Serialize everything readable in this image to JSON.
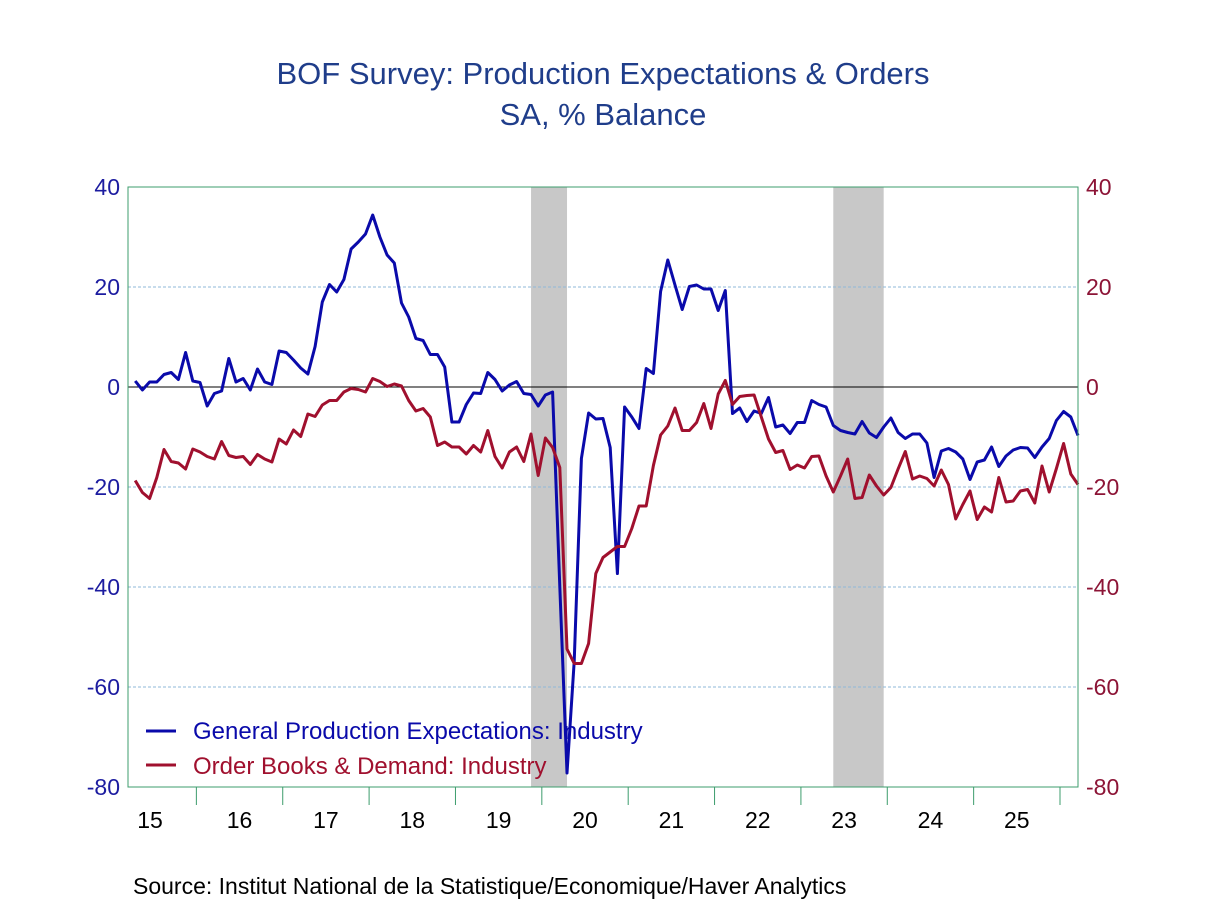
{
  "chart_data": {
    "type": "line",
    "title": "BOF Survey: Production Expectations & Orders",
    "subtitle": "SA, % Balance",
    "source": "Source:  Institut National de la Statistique/Economique/Haver Analytics",
    "x_start": "2015-04",
    "frequency": "monthly",
    "x_tick_labels": [
      "15",
      "16",
      "17",
      "18",
      "19",
      "20",
      "21",
      "22",
      "23",
      "24",
      "25"
    ],
    "xlim": [
      "2015-03",
      "2026-03"
    ],
    "y_left": {
      "ylim": [
        -80,
        40
      ],
      "ticks": [
        "40",
        "20",
        "0",
        "-20",
        "-40",
        "-60",
        "-80"
      ],
      "color": "#1c1ca0"
    },
    "y_right": {
      "ylim": [
        -80,
        40
      ],
      "ticks": [
        "40",
        "20",
        "0",
        "-20",
        "-40",
        "-60",
        "-80"
      ],
      "color": "#8c1436"
    },
    "grid": true,
    "zero_line": true,
    "legend_position": "bottom-left",
    "recession_shading": [
      [
        "2019-11",
        "2020-04"
      ],
      [
        "2023-05",
        "2023-12"
      ]
    ],
    "colors": {
      "title": "#1f3d8a",
      "frame": "#3c9c6c",
      "grid": "#8fb8d8",
      "shade": "#c8c8c8"
    },
    "series": [
      {
        "name": "General Production Expectations: Industry",
        "color": "#0a0aaa",
        "values": [
          1.2,
          -0.6,
          1,
          1,
          2.5,
          2.9,
          1.5,
          6.9,
          1.2,
          0.9,
          -3.8,
          -1.3,
          -0.8,
          5.7,
          1,
          1.7,
          -0.6,
          3.6,
          1,
          0.5,
          7.2,
          6.9,
          5.4,
          3.8,
          2.6,
          8.1,
          17,
          20.5,
          19,
          21.5,
          27.6,
          29,
          30.6,
          34.4,
          30,
          26.4,
          24.8,
          16.8,
          14,
          9.7,
          9.3,
          6.5,
          6.5,
          4,
          -7,
          -7,
          -3.5,
          -1.2,
          -1.3,
          2.9,
          1.5,
          -0.8,
          0.4,
          1.1,
          -1.3,
          -1.5,
          -3.8,
          -1.6,
          -1.0,
          -39.9,
          -77.2,
          -54.9,
          -14.3,
          -5.2,
          -6.4,
          -6.3,
          -12.1,
          -37.3,
          -4.0,
          -6.0,
          -8.3,
          3.7,
          2.7,
          19.1,
          25.4,
          20.4,
          15.5,
          20.1,
          20.4,
          19.6,
          19.6,
          15.3,
          19.3,
          -5.3,
          -4.2,
          -6.9,
          -4.8,
          -5.3,
          -2.1,
          -8.0,
          -7.6,
          -9.3,
          -7.1,
          -7.1,
          -2.7,
          -3.5,
          -4.0,
          -7.7,
          -8.7,
          -9.1,
          -9.4,
          -6.9,
          -9.2,
          -10.1,
          -8.0,
          -6.2,
          -9.1,
          -10.3,
          -9.4,
          -9.4,
          -11.2,
          -18.1,
          -12.8,
          -12.3,
          -13,
          -14.4,
          -18.5,
          -15,
          -14.6,
          -12,
          -15.9,
          -13.8,
          -12.6,
          -12.1,
          -12.2,
          -14.1,
          -12,
          -10.3,
          -6.7,
          -4.9,
          -6.0,
          -9.7
        ]
      },
      {
        "name": "Order Books & Demand: Industry",
        "color": "#a0102e",
        "values": [
          -18.7,
          -21.1,
          -22.3,
          -18.1,
          -12.5,
          -14.9,
          -15.2,
          -16.4,
          -12.4,
          -13,
          -13.9,
          -14.4,
          -10.9,
          -13.7,
          -14.1,
          -13.9,
          -15.5,
          -13.5,
          -14.4,
          -15,
          -10.4,
          -11.4,
          -8.6,
          -9.9,
          -5.4,
          -5.9,
          -3.6,
          -2.7,
          -2.7,
          -1,
          -0.3,
          -0.5,
          -1,
          1.7,
          1.1,
          0.1,
          0.6,
          0.2,
          -2.7,
          -4.8,
          -4.3,
          -6,
          -11.7,
          -11,
          -12,
          -12,
          -13.4,
          -11.7,
          -13,
          -8.7,
          -13.9,
          -16.2,
          -13,
          -12,
          -14.9,
          -9.4,
          -17.7,
          -10.2,
          -12.1,
          -16.1,
          -52.4,
          -55.3,
          -55.3,
          -51.3,
          -37.3,
          -34.1,
          -33,
          -31.9,
          -31.9,
          -28.3,
          -23.8,
          -23.8,
          -15.7,
          -9.6,
          -7.8,
          -4.2,
          -8.7,
          -8.7,
          -7.1,
          -3.3,
          -8.3,
          -1.4,
          1.3,
          -3.5,
          -1.9,
          -1.7,
          -1.6,
          -6.0,
          -10.4,
          -13.1,
          -12.7,
          -16.5,
          -15.6,
          -16.2,
          -13.9,
          -13.8,
          -17.8,
          -21,
          -17.8,
          -14.4,
          -22.3,
          -22.1,
          -17.6,
          -19.8,
          -21.6,
          -20.1,
          -16.4,
          -12.9,
          -18.4,
          -17.8,
          -18.3,
          -19.8,
          -16.6,
          -19.5,
          -26.4,
          -23.5,
          -20.8,
          -26.5,
          -24,
          -25,
          -18.1,
          -23,
          -22.8,
          -20.8,
          -20.5,
          -23.2,
          -15.8,
          -21,
          -16.3,
          -11.3,
          -17.4,
          -19.5
        ]
      }
    ]
  }
}
